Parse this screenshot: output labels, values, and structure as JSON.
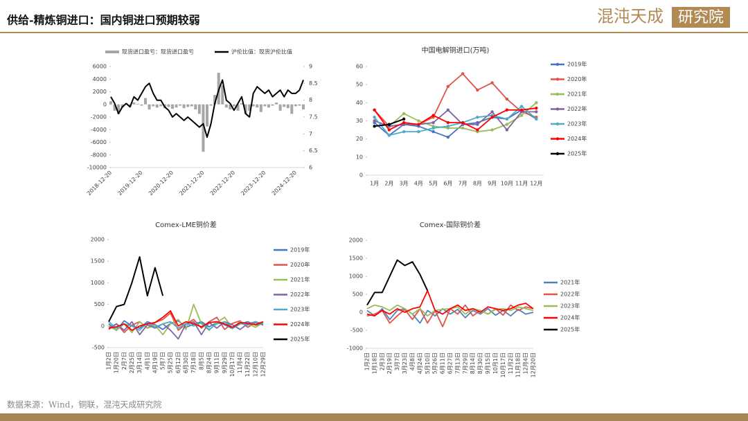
{
  "header": {
    "title": "供给-精炼铜进口：国内铜进口预期较弱",
    "logo": {
      "name": "混沌天成",
      "tag": "研究院"
    }
  },
  "footer": {
    "source": "数据来源：Wind，铜联，混沌天成研究院"
  },
  "chart_data": [
    {
      "type": "line",
      "legend": "top",
      "categories": [
        "2018-12-20",
        null,
        null,
        null,
        null,
        null,
        null,
        null,
        "2019-12-20",
        null,
        null,
        null,
        null,
        null,
        null,
        null,
        "2020-12-20",
        null,
        null,
        null,
        null,
        null,
        null,
        null,
        "2021-12-20",
        null,
        null,
        null,
        null,
        null,
        null,
        null,
        "2022-12-20",
        null,
        null,
        null,
        null,
        null,
        null,
        null,
        "2023-12-20",
        null,
        null,
        null,
        null,
        null,
        null,
        null,
        "2024-12-20",
        null,
        null
      ],
      "ylim": [
        -10000,
        6000
      ],
      "yticks": [
        -10000,
        -8000,
        -6000,
        -4000,
        -2000,
        0,
        2000,
        4000,
        6000
      ],
      "y2lim": [
        6,
        9
      ],
      "y2ticks": [
        6,
        6.5,
        7,
        7.5,
        8,
        8.5,
        9
      ],
      "series": [
        {
          "name": "现货进口盈亏：现货进口盈亏",
          "type": "bar",
          "color": "#a6a6a6",
          "values": [
            500,
            -1000,
            -1500,
            -500,
            200,
            -300,
            300,
            100,
            -200,
            1000,
            -800,
            -300,
            -500,
            -300,
            -600,
            -400,
            -700,
            -500,
            -200,
            -600,
            -400,
            -300,
            -800,
            -1500,
            -7500,
            -3500,
            -200,
            1500,
            5000,
            3000,
            -500,
            -800,
            -300,
            -1000,
            200,
            -1500,
            -1000,
            -300,
            -500,
            -1200,
            -300,
            -500,
            -200,
            300,
            -1000,
            -400,
            -600,
            -1500,
            -300,
            -200,
            -800
          ]
        },
        {
          "name": "沪伦比值：现货沪伦比值",
          "type": "line",
          "axis": "y2",
          "color": "#000000",
          "values": [
            8.1,
            7.9,
            7.6,
            7.8,
            7.9,
            7.8,
            8.1,
            8.0,
            8.2,
            8.4,
            8.5,
            8.2,
            8.0,
            8.0,
            7.8,
            7.7,
            7.5,
            7.6,
            7.5,
            7.4,
            7.5,
            7.4,
            7.3,
            7.2,
            7.3,
            6.9,
            7.3,
            7.9,
            8.3,
            8.6,
            8.0,
            7.9,
            7.7,
            7.9,
            8.1,
            7.6,
            7.5,
            8.2,
            8.4,
            8.3,
            8.2,
            8.3,
            8.1,
            8.2,
            8.3,
            8.1,
            8.3,
            8.2,
            8.2,
            8.3,
            8.6
          ]
        }
      ]
    },
    {
      "type": "line",
      "title": "中国电解铜进口(万吨)",
      "legend": "right",
      "markers": true,
      "categories": [
        "1月",
        "2月",
        "3月",
        "4月",
        "5月",
        "6月",
        "7月",
        "8月",
        "9月",
        "10月",
        "11月",
        "12月"
      ],
      "ylim": [
        0,
        60
      ],
      "yticks": [
        0,
        10,
        20,
        30,
        40,
        50,
        60
      ],
      "series": [
        {
          "name": "2019年",
          "color": "#4472c4",
          "values": [
            29,
            22,
            28,
            27,
            24,
            21,
            28,
            29,
            32,
            31,
            36,
            31
          ]
        },
        {
          "name": "2020年",
          "color": "#e0524a",
          "values": [
            36,
            27,
            28,
            28,
            32,
            49,
            56,
            47,
            51,
            42,
            35,
            32
          ]
        },
        {
          "name": "2021年",
          "color": "#9bbb59",
          "values": [
            30,
            27,
            34,
            30,
            27,
            26,
            26,
            24,
            25,
            28,
            33,
            40
          ]
        },
        {
          "name": "2022年",
          "color": "#8064a2",
          "values": [
            30,
            27,
            28,
            28,
            29,
            36,
            28,
            28,
            35,
            25,
            35,
            35
          ]
        },
        {
          "name": "2023年",
          "color": "#4bacc6",
          "values": [
            32,
            22,
            24,
            24,
            26,
            27,
            29,
            32,
            33,
            31,
            38,
            31
          ]
        },
        {
          "name": "2024年",
          "color": "#ff0000",
          "values": [
            36,
            25,
            29,
            28,
            33,
            29,
            29,
            25,
            32,
            36,
            36,
            37
          ]
        },
        {
          "name": "2025年",
          "color": "#000000",
          "values": [
            27,
            28,
            31,
            null,
            null,
            null,
            null,
            null,
            null,
            null,
            null,
            null
          ]
        }
      ]
    },
    {
      "type": "line",
      "title": "Comex-LME铜价差",
      "legend": "right",
      "categories": [
        "1月2日",
        "1月20日",
        "2月7日",
        "2月25日",
        "3月14日",
        "4月1日",
        "4月19日",
        "5月7日",
        "5月25日",
        "6月12日",
        "6月30日",
        "7月18日",
        "8月5日",
        "8月24日",
        "9月11日",
        "9月29日",
        "10月17日",
        "11月4日",
        "11月22日",
        "12月10日",
        "12月29日"
      ],
      "ylim": [
        -500,
        2000
      ],
      "yticks": [
        -500,
        0,
        500,
        1000,
        1500,
        2000
      ],
      "series": [
        {
          "name": "2019年",
          "color": "#4472c4",
          "values": [
            50,
            -100,
            120,
            0,
            -50,
            100,
            30,
            -80,
            60,
            120,
            -30,
            40,
            100,
            -20,
            80,
            30,
            -60,
            50,
            100,
            20,
            60
          ]
        },
        {
          "name": "2020年",
          "color": "#e0524a",
          "values": [
            -80,
            50,
            -150,
            20,
            100,
            -50,
            80,
            150,
            300,
            -100,
            50,
            150,
            -50,
            100,
            200,
            -80,
            60,
            120,
            -30,
            80,
            40
          ]
        },
        {
          "name": "2021年",
          "color": "#9bbb59",
          "values": [
            0,
            -100,
            50,
            -150,
            100,
            -50,
            20,
            -200,
            50,
            150,
            -80,
            500,
            50,
            -100,
            80,
            200,
            -50,
            100,
            50,
            -30,
            80
          ]
        },
        {
          "name": "2022年",
          "color": "#8064a2",
          "values": [
            -50,
            50,
            -100,
            100,
            -200,
            30,
            -50,
            50,
            -100,
            -300,
            50,
            100,
            -200,
            80,
            -50,
            100,
            30,
            -80,
            50,
            100,
            20
          ]
        },
        {
          "name": "2023年",
          "color": "#4bacc6",
          "values": [
            100,
            -50,
            50,
            0,
            -100,
            80,
            -30,
            50,
            100,
            -50,
            60,
            0,
            80,
            -80,
            50,
            100,
            -30,
            60,
            20,
            100,
            50
          ]
        },
        {
          "name": "2024年",
          "color": "#ff0000",
          "values": [
            -50,
            -20,
            50,
            -100,
            0,
            50,
            80,
            200,
            350,
            0,
            100,
            50,
            -20,
            80,
            100,
            50,
            -30,
            80,
            60,
            30,
            100
          ]
        },
        {
          "name": "2025年",
          "color": "#000000",
          "values": [
            100,
            450,
            500,
            1000,
            1600,
            700,
            1350,
            700,
            null,
            null,
            null,
            null,
            null,
            null,
            null,
            null,
            null,
            null,
            null,
            null,
            null
          ]
        }
      ]
    },
    {
      "type": "line",
      "title": "Comex-国际铜价差",
      "legend": "right",
      "categories": [
        "1月2日",
        "1月18日",
        "2月3日",
        "2月19日",
        "3月7日",
        "3月23日",
        "4月8日",
        "4月24日",
        "5月10日",
        "5月26日",
        "6月11日",
        "6月27日",
        "7月13日",
        "7月29日",
        "8月14日",
        "8月30日",
        "9月15日",
        "10月1日",
        "10月17日",
        "11月2日",
        "11月18日",
        "12月4日",
        "12月20日"
      ],
      "ylim": [
        -1000,
        2000
      ],
      "yticks": [
        -1000,
        -500,
        0,
        500,
        1000,
        1500,
        2000
      ],
      "series": [
        {
          "name": "2021年",
          "color": "#4f81bd",
          "values": [
            50,
            -100,
            100,
            -200,
            50,
            100,
            -50,
            -300,
            50,
            -100,
            100,
            -50,
            80,
            -150,
            50,
            -50,
            100,
            -80,
            50,
            -100,
            80,
            -50,
            0
          ]
        },
        {
          "name": "2022年",
          "color": "#e0524a",
          "values": [
            -100,
            -50,
            50,
            -300,
            -100,
            80,
            -200,
            100,
            -300,
            50,
            -400,
            100,
            -50,
            200,
            -100,
            50,
            -50,
            100,
            -80,
            200,
            50,
            150,
            100
          ]
        },
        {
          "name": "2023年",
          "color": "#9bbb59",
          "values": [
            100,
            200,
            150,
            50,
            200,
            100,
            -50,
            100,
            -100,
            50,
            80,
            100,
            150,
            -50,
            100,
            50,
            -50,
            80,
            100,
            50,
            150,
            100,
            50
          ]
        },
        {
          "name": "2024年",
          "color": "#ff0000",
          "values": [
            -50,
            -100,
            50,
            -50,
            100,
            0,
            100,
            150,
            600,
            50,
            -50,
            100,
            200,
            50,
            100,
            0,
            150,
            100,
            50,
            100,
            200,
            250,
            100
          ]
        },
        {
          "name": "2025年",
          "color": "#000000",
          "values": [
            200,
            550,
            550,
            1000,
            1450,
            1300,
            1400,
            1050,
            600,
            null,
            null,
            null,
            null,
            null,
            null,
            null,
            null,
            null,
            null,
            null,
            null,
            null,
            null
          ]
        }
      ]
    }
  ]
}
